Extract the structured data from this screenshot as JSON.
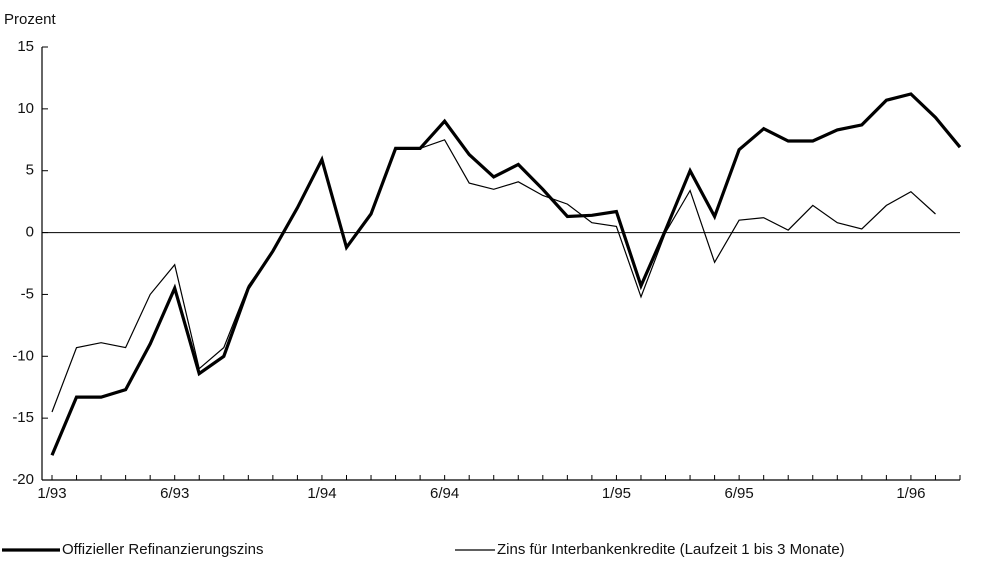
{
  "chart_data": {
    "type": "line",
    "y_label": "Prozent",
    "categories": [
      "1/93",
      null,
      null,
      null,
      null,
      "6/93",
      null,
      null,
      null,
      null,
      null,
      "1/94",
      null,
      null,
      null,
      null,
      "6/94",
      null,
      null,
      null,
      null,
      null,
      null,
      "1/95",
      null,
      null,
      null,
      null,
      "6/95",
      null,
      null,
      null,
      null,
      null,
      null,
      "1/96",
      null,
      null
    ],
    "series": [
      {
        "name": "Offizieller Refinanzierungszins",
        "color": "#000000",
        "values": [
          -18,
          -13.3,
          -13.3,
          -12.7,
          -9,
          -4.5,
          -11.4,
          -10,
          -4.5,
          -1.5,
          2,
          5.9,
          -1.2,
          1.5,
          6.8,
          6.8,
          9,
          6.3,
          4.5,
          5.5,
          3.5,
          1.3,
          1.4,
          1.7,
          -4.3,
          0.2,
          5,
          1.3,
          6.7,
          8.4,
          7.4,
          7.4,
          8.3,
          8.7,
          10.7,
          11.2,
          9.3,
          6.9
        ]
      },
      {
        "name": "Zins für Interbankenkredite (Laufzeit 1 bis 3 Monate)",
        "color": "#000000",
        "values": [
          -14.5,
          -9.3,
          -8.9,
          -9.3,
          -5,
          -2.6,
          -11,
          -9.3,
          -4.3,
          -1.5,
          2,
          5.9,
          -1.2,
          1.5,
          6.8,
          6.8,
          7.5,
          4,
          3.5,
          4.1,
          3,
          2.3,
          0.8,
          0.5,
          -5.2,
          0,
          3.4,
          -2.4,
          1,
          1.2,
          0.2,
          2.2,
          0.8,
          0.3,
          2.2,
          3.3,
          1.5,
          null
        ]
      }
    ],
    "ylim": [
      -20,
      15
    ],
    "yticks": [
      -20,
      -15,
      -10,
      -5,
      0,
      5,
      10,
      15
    ],
    "zero_line": true,
    "legend": "bottom"
  }
}
